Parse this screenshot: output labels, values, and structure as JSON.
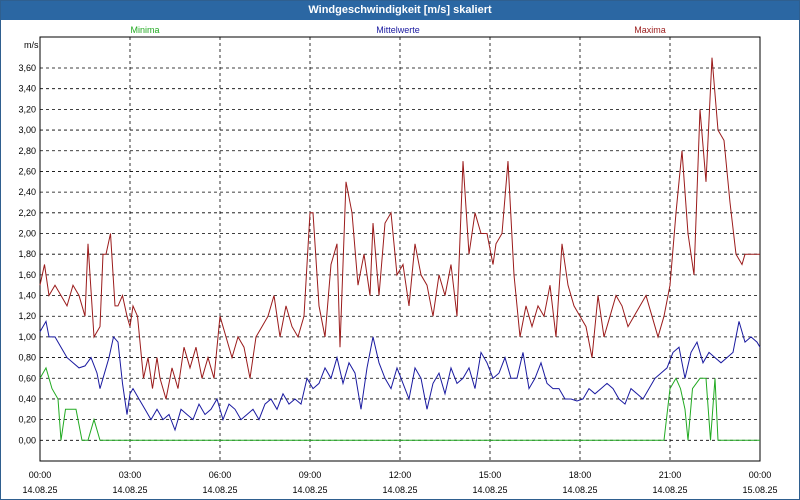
{
  "window": {
    "title": "Windgeschwindigkeit [m/s] skaliert"
  },
  "chart_data": {
    "type": "line",
    "title": "Windgeschwindigkeit [m/s] skaliert",
    "ylabel": "m/s",
    "xlabel": "",
    "ylim": [
      -0.2,
      3.9
    ],
    "xlim": [
      0,
      24
    ],
    "yticks": [
      0,
      0.2,
      0.4,
      0.6,
      0.8,
      1.0,
      1.2,
      1.4,
      1.6,
      1.8,
      2.0,
      2.2,
      2.4,
      2.6,
      2.8,
      3.0,
      3.2,
      3.4,
      3.6
    ],
    "ytick_labels": [
      "0,00",
      "0,20",
      "0,40",
      "0,60",
      "0,80",
      "1,00",
      "1,20",
      "1,40",
      "1,60",
      "1,80",
      "2,00",
      "2,20",
      "2,40",
      "2,60",
      "2,80",
      "3,00",
      "3,20",
      "3,40",
      "3,60"
    ],
    "xticks": [
      {
        "t": 0,
        "time": "00:00",
        "date": "14.08.25"
      },
      {
        "t": 3,
        "time": "03:00",
        "date": "14.08.25"
      },
      {
        "t": 6,
        "time": "06:00",
        "date": "14.08.25"
      },
      {
        "t": 9,
        "time": "09:00",
        "date": "14.08.25"
      },
      {
        "t": 12,
        "time": "12:00",
        "date": "14.08.25"
      },
      {
        "t": 15,
        "time": "15:00",
        "date": "14.08.25"
      },
      {
        "t": 18,
        "time": "18:00",
        "date": "14.08.25"
      },
      {
        "t": 21,
        "time": "21:00",
        "date": "14.08.25"
      },
      {
        "t": 24,
        "time": "00:00",
        "date": "15.08.25"
      }
    ],
    "grid": true,
    "series": [
      {
        "name": "Minima",
        "color": "#22aa22",
        "t": [
          0,
          0.2,
          0.4,
          0.6,
          0.7,
          0.85,
          1.0,
          1.2,
          1.4,
          1.6,
          1.8,
          2.0,
          2.2,
          20.8,
          21.0,
          21.2,
          21.35,
          21.5,
          21.6,
          21.75,
          22.0,
          22.2,
          22.35,
          22.5,
          22.6,
          22.8,
          23.0,
          24.0
        ],
        "values": [
          0.6,
          0.7,
          0.5,
          0.4,
          0.0,
          0.3,
          0.3,
          0.3,
          0.0,
          0.0,
          0.2,
          0.0,
          0.0,
          0.0,
          0.5,
          0.6,
          0.5,
          0.3,
          0.0,
          0.5,
          0.6,
          0.6,
          0.0,
          0.6,
          0.0,
          0.0,
          0.0,
          0.0
        ]
      },
      {
        "name": "Mittelwerte",
        "color": "#1a1aa0",
        "t": [
          0,
          0.2,
          0.3,
          0.5,
          0.7,
          0.9,
          1.1,
          1.3,
          1.5,
          1.7,
          1.9,
          2.0,
          2.1,
          2.3,
          2.45,
          2.6,
          2.75,
          2.9,
          3.0,
          3.1,
          3.3,
          3.5,
          3.7,
          3.9,
          4.1,
          4.3,
          4.5,
          4.7,
          4.9,
          5.1,
          5.3,
          5.5,
          5.7,
          5.9,
          6.1,
          6.3,
          6.5,
          6.7,
          6.9,
          7.1,
          7.3,
          7.5,
          7.7,
          7.9,
          8.1,
          8.3,
          8.5,
          8.7,
          8.9,
          9.1,
          9.3,
          9.5,
          9.7,
          9.9,
          10.1,
          10.3,
          10.5,
          10.7,
          10.9,
          11.1,
          11.3,
          11.5,
          11.7,
          11.9,
          12.1,
          12.3,
          12.5,
          12.7,
          12.9,
          13.1,
          13.3,
          13.5,
          13.7,
          13.9,
          14.1,
          14.3,
          14.5,
          14.7,
          14.9,
          15.1,
          15.3,
          15.5,
          15.7,
          15.9,
          16.1,
          16.3,
          16.5,
          16.7,
          16.9,
          17.1,
          17.3,
          17.5,
          17.7,
          17.9,
          18.1,
          18.3,
          18.5,
          18.7,
          18.9,
          19.1,
          19.3,
          19.5,
          19.7,
          19.9,
          20.1,
          20.3,
          20.5,
          20.7,
          20.9,
          21.1,
          21.3,
          21.5,
          21.7,
          21.9,
          22.1,
          22.3,
          22.5,
          22.7,
          22.9,
          23.1,
          23.3,
          23.5,
          23.7,
          23.9,
          24.0
        ],
        "values": [
          1.05,
          1.15,
          1.0,
          1.0,
          0.9,
          0.8,
          0.75,
          0.7,
          0.72,
          0.8,
          0.65,
          0.5,
          0.6,
          0.8,
          1.0,
          0.95,
          0.55,
          0.25,
          0.45,
          0.5,
          0.4,
          0.3,
          0.2,
          0.3,
          0.2,
          0.25,
          0.1,
          0.3,
          0.25,
          0.2,
          0.35,
          0.25,
          0.3,
          0.4,
          0.2,
          0.35,
          0.3,
          0.2,
          0.25,
          0.3,
          0.2,
          0.35,
          0.4,
          0.3,
          0.45,
          0.35,
          0.4,
          0.35,
          0.6,
          0.5,
          0.55,
          0.7,
          0.6,
          0.8,
          0.55,
          0.75,
          0.65,
          0.3,
          0.7,
          1.0,
          0.75,
          0.6,
          0.5,
          0.7,
          0.55,
          0.4,
          0.7,
          0.6,
          0.3,
          0.55,
          0.65,
          0.45,
          0.7,
          0.55,
          0.6,
          0.7,
          0.5,
          0.85,
          0.75,
          0.6,
          0.65,
          0.8,
          0.6,
          0.6,
          0.85,
          0.5,
          0.6,
          0.75,
          0.55,
          0.5,
          0.5,
          0.4,
          0.4,
          0.38,
          0.4,
          0.5,
          0.45,
          0.5,
          0.55,
          0.5,
          0.4,
          0.35,
          0.5,
          0.45,
          0.4,
          0.5,
          0.6,
          0.65,
          0.7,
          0.85,
          0.9,
          0.6,
          0.85,
          0.95,
          0.75,
          0.85,
          0.8,
          0.75,
          0.8,
          0.85,
          1.15,
          0.95,
          1.0,
          0.95,
          0.9
        ]
      },
      {
        "name": "Maxima",
        "color": "#9b1b1b",
        "t": [
          0,
          0.15,
          0.3,
          0.5,
          0.7,
          0.9,
          1.1,
          1.3,
          1.5,
          1.6,
          1.8,
          2.0,
          2.1,
          2.2,
          2.35,
          2.5,
          2.6,
          2.75,
          2.9,
          3.0,
          3.1,
          3.25,
          3.45,
          3.6,
          3.75,
          3.9,
          4.0,
          4.2,
          4.4,
          4.6,
          4.8,
          5.0,
          5.2,
          5.4,
          5.6,
          5.8,
          6.0,
          6.2,
          6.4,
          6.6,
          6.8,
          7.0,
          7.2,
          7.4,
          7.6,
          7.8,
          8.0,
          8.2,
          8.4,
          8.6,
          8.8,
          9.0,
          9.1,
          9.3,
          9.5,
          9.7,
          9.9,
          10.0,
          10.2,
          10.4,
          10.6,
          10.8,
          11.0,
          11.1,
          11.3,
          11.5,
          11.7,
          11.9,
          12.1,
          12.3,
          12.5,
          12.7,
          12.9,
          13.1,
          13.3,
          13.5,
          13.7,
          13.9,
          14.1,
          14.3,
          14.5,
          14.7,
          14.9,
          15.1,
          15.2,
          15.4,
          15.6,
          15.8,
          16.0,
          16.2,
          16.4,
          16.6,
          16.8,
          17.0,
          17.2,
          17.4,
          17.6,
          17.8,
          18.0,
          18.2,
          18.4,
          18.6,
          18.8,
          19.0,
          19.2,
          19.4,
          19.6,
          19.8,
          20.0,
          20.2,
          20.4,
          20.6,
          20.8,
          21.0,
          21.2,
          21.4,
          21.6,
          21.8,
          22.0,
          22.2,
          22.4,
          22.6,
          22.8,
          23.0,
          23.2,
          23.4,
          23.5,
          23.7,
          23.8,
          24.0
        ],
        "values": [
          1.5,
          1.7,
          1.4,
          1.5,
          1.4,
          1.3,
          1.5,
          1.4,
          1.2,
          1.9,
          1.0,
          1.1,
          1.8,
          1.8,
          2.0,
          1.3,
          1.3,
          1.4,
          1.2,
          1.1,
          1.3,
          1.2,
          0.6,
          0.8,
          0.5,
          0.8,
          0.6,
          0.4,
          0.7,
          0.5,
          0.9,
          0.7,
          0.9,
          0.6,
          0.8,
          0.6,
          1.2,
          1.0,
          0.8,
          1.0,
          0.9,
          0.6,
          1.0,
          1.1,
          1.2,
          1.4,
          1.0,
          1.3,
          1.1,
          1.0,
          1.2,
          2.2,
          2.2,
          1.3,
          1.0,
          1.7,
          1.9,
          0.9,
          2.5,
          2.2,
          1.5,
          1.8,
          1.4,
          2.1,
          1.4,
          2.1,
          2.2,
          1.6,
          1.7,
          1.3,
          1.9,
          1.6,
          1.5,
          1.2,
          1.6,
          1.4,
          1.7,
          1.2,
          2.7,
          1.8,
          2.2,
          2.0,
          2.0,
          1.7,
          1.9,
          2.0,
          2.7,
          1.6,
          1.0,
          1.3,
          1.1,
          1.3,
          1.2,
          1.5,
          1.0,
          1.9,
          1.5,
          1.3,
          1.2,
          1.1,
          0.8,
          1.4,
          1.0,
          1.2,
          1.4,
          1.3,
          1.1,
          1.2,
          1.3,
          1.4,
          1.2,
          1.0,
          1.2,
          1.5,
          2.2,
          2.8,
          2.0,
          1.6,
          3.2,
          2.5,
          3.7,
          3.0,
          2.9,
          2.3,
          1.8,
          1.7,
          1.8,
          1.8,
          1.8,
          1.8
        ]
      }
    ]
  }
}
